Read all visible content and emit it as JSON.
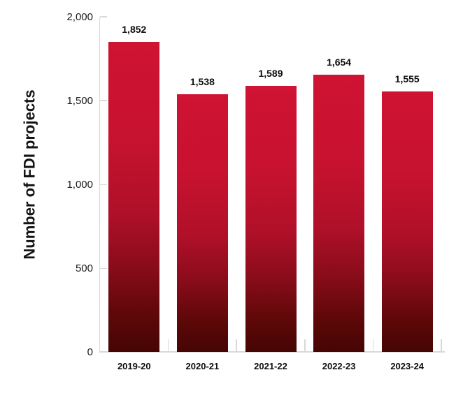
{
  "chart_data": {
    "type": "bar",
    "title": "",
    "xlabel": "",
    "ylabel": "Number of FDI projects",
    "categories": [
      "2019-20",
      "2020-21",
      "2021-22",
      "2022-23",
      "2023-24"
    ],
    "values": [
      1852,
      1538,
      1589,
      1654,
      1555
    ],
    "value_labels": [
      "1,852",
      "1,538",
      "1,589",
      "1,654",
      "1,555"
    ],
    "ylim": [
      0,
      2000
    ],
    "ytick_interval": 500,
    "yticks": [
      {
        "value": 0,
        "label": "0"
      },
      {
        "value": 500,
        "label": "500"
      },
      {
        "value": 1000,
        "label": "1,000"
      },
      {
        "value": 1500,
        "label": "1,500"
      },
      {
        "value": 2000,
        "label": "2,000"
      }
    ],
    "grid": false,
    "legend": null,
    "data_labels_shown": true,
    "colors": {
      "bar_gradient_top": "#CF1333",
      "bar_gradient_upper_mid": "#C8122F",
      "bar_gradient_mid": "#B01029",
      "bar_gradient_lower_mid": "#8A0C1B",
      "bar_gradient_dark": "#5E0808",
      "bar_gradient_bottom": "#450504",
      "axis": "#D9D9D9",
      "text": "#0D0D0D",
      "background": "#FFFFFF"
    }
  }
}
